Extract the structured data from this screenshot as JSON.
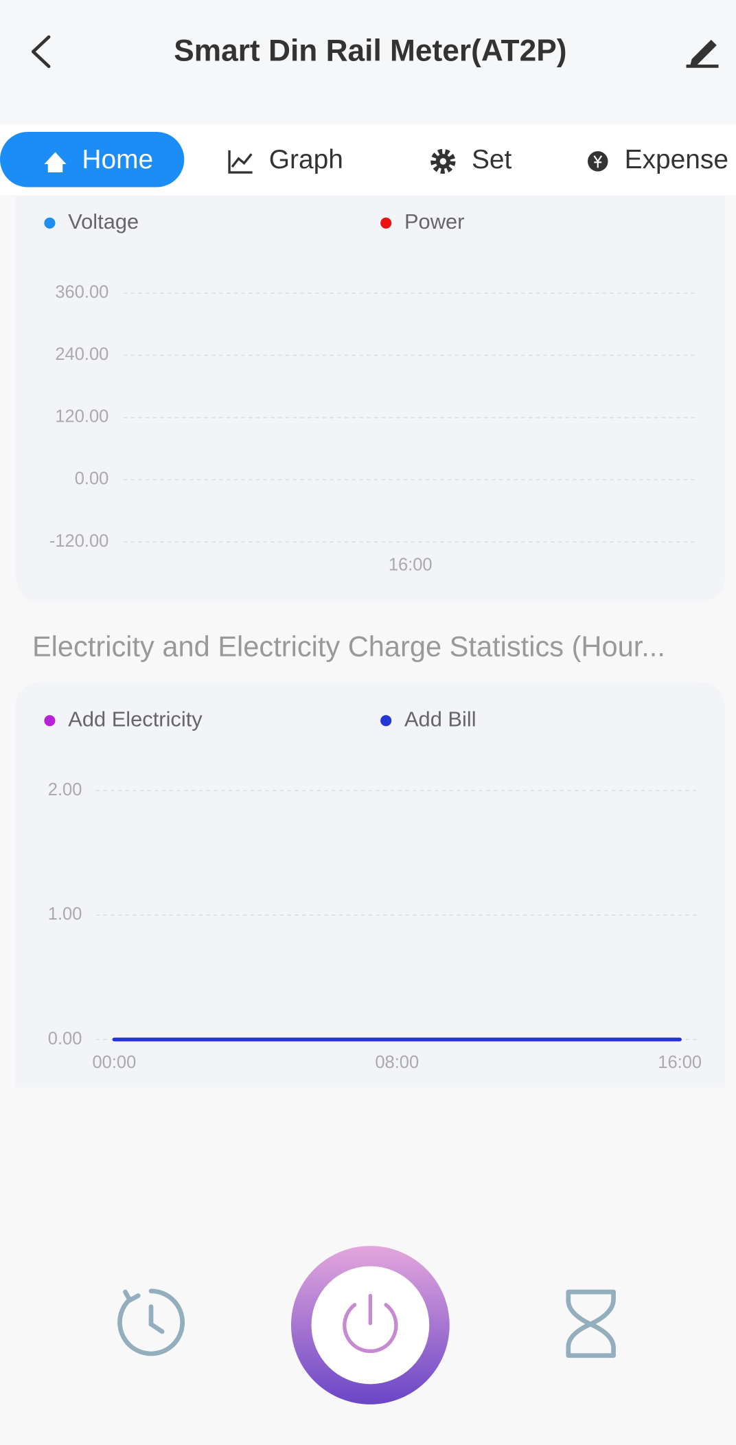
{
  "header": {
    "title": "Smart Din Rail Meter(AT2P)"
  },
  "tabs": [
    {
      "label": "Home"
    },
    {
      "label": "Graph"
    },
    {
      "label": "Set"
    },
    {
      "label": "Expense"
    }
  ],
  "chart_data": [
    {
      "type": "line",
      "categories": [
        "16:00"
      ],
      "series": [
        {
          "name": "Voltage",
          "color": "#1e8ff2",
          "values": [
            null
          ]
        },
        {
          "name": "Power",
          "color": "#ee1111",
          "values": [
            null
          ]
        }
      ],
      "ylim": [
        -120,
        360
      ],
      "yticks": [
        {
          "value": -120,
          "label": "-120.00"
        },
        {
          "value": 0,
          "label": "0.00"
        },
        {
          "value": 120,
          "label": "120.00"
        },
        {
          "value": 240,
          "label": "240.00"
        },
        {
          "value": 360,
          "label": "360.00"
        }
      ],
      "grid": true
    },
    {
      "type": "line",
      "title": "Electricity and Electricity Charge Statistics (Hour...",
      "categories": [
        "00:00",
        "08:00",
        "16:00"
      ],
      "series": [
        {
          "name": "Add Electricity",
          "color": "#b522d8",
          "values": [
            0,
            0,
            0
          ]
        },
        {
          "name": "Add Bill",
          "color": "#2436d6",
          "values": [
            0,
            0,
            0
          ]
        }
      ],
      "ylim": [
        0,
        2
      ],
      "yticks": [
        {
          "value": 0,
          "label": "0.00"
        },
        {
          "value": 1,
          "label": "1.00"
        },
        {
          "value": 2,
          "label": "2.00"
        }
      ],
      "grid": true
    }
  ]
}
